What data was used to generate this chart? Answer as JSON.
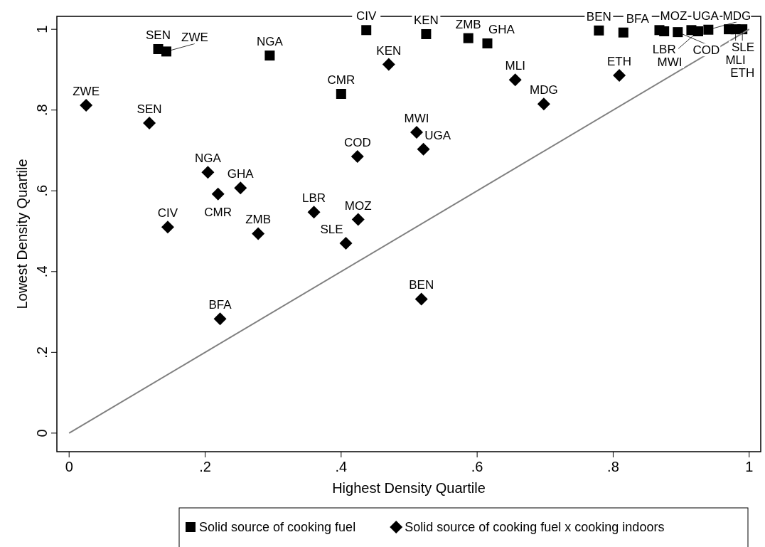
{
  "chart_data": {
    "type": "scatter",
    "xlabel": "Highest Density Quartile",
    "ylabel": "Lowest Density Quartile",
    "xlim": [
      -0.018,
      1.017
    ],
    "ylim": [
      -0.046,
      1.032
    ],
    "xticks": [
      0,
      {
        "value": 0.2,
        "label": ".2"
      },
      {
        "value": 0.4,
        "label": ".4"
      },
      {
        "value": 0.6,
        "label": ".6"
      },
      {
        "value": 0.8,
        "label": ".8"
      },
      1
    ],
    "yticks": [
      0,
      {
        "value": 0.2,
        "label": ".2"
      },
      {
        "value": 0.4,
        "label": ".4"
      },
      {
        "value": 0.6,
        "label": ".6"
      },
      {
        "value": 0.8,
        "label": ".8"
      },
      1
    ],
    "grid": false,
    "legend": "bottom",
    "series": [
      {
        "name": "Solid source of cooking fuel",
        "color": "#000000",
        "marker": "square",
        "x": [
          0.131,
          0.143,
          0.295,
          0.4,
          0.437,
          0.525,
          0.587,
          0.615,
          0.779,
          0.815,
          0.868,
          0.875,
          0.895,
          0.915,
          0.925,
          0.94,
          0.97,
          0.98,
          0.99
        ],
        "values": [
          0.951,
          0.945,
          0.935,
          0.84,
          0.998,
          0.988,
          0.978,
          0.965,
          0.997,
          0.992,
          0.998,
          0.995,
          0.993,
          0.998,
          0.995,
          0.999,
          1.0,
          1.0,
          1.0
        ]
      },
      {
        "name": "Solid source of cooking fuel x cooking indoors",
        "color": "#000000",
        "marker": "diamond",
        "x": [
          0.025,
          0.118,
          0.204,
          0.219,
          0.252,
          0.145,
          0.222,
          0.278,
          0.36,
          0.407,
          0.425,
          0.424,
          0.47,
          0.511,
          0.521,
          0.518,
          0.656,
          0.698,
          0.809
        ],
        "values": [
          0.812,
          0.768,
          0.646,
          0.592,
          0.607,
          0.51,
          0.283,
          0.494,
          0.547,
          0.47,
          0.529,
          0.685,
          0.913,
          0.745,
          0.703,
          0.332,
          0.875,
          0.815,
          0.886
        ]
      },
      {
        "type": "line",
        "color": "#808080",
        "marker": "none",
        "x": [
          0,
          1
        ],
        "values": [
          0,
          1
        ]
      }
    ],
    "annotations": [
      {
        "text": "SEN",
        "x": 0.131,
        "y": 0.951
      },
      {
        "text": "ZWE",
        "x": 0.143,
        "y": 0.945
      },
      {
        "text": "NGA",
        "x": 0.295,
        "y": 0.935
      },
      {
        "text": "CMR",
        "x": 0.4,
        "y": 0.84
      },
      {
        "text": "CIV",
        "x": 0.437,
        "y": 0.998
      },
      {
        "text": "KEN",
        "x": 0.525,
        "y": 0.988
      },
      {
        "text": "ZMB",
        "x": 0.587,
        "y": 0.978
      },
      {
        "text": "GHA",
        "x": 0.615,
        "y": 0.965
      },
      {
        "text": "BEN",
        "x": 0.779,
        "y": 0.997
      },
      {
        "text": "BFA",
        "x": 0.815,
        "y": 0.992
      },
      {
        "text": "MOZ",
        "x": 0.868,
        "y": 0.998
      },
      {
        "text": "LBR",
        "x": 0.875,
        "y": 0.995
      },
      {
        "text": "COD",
        "x": 0.895,
        "y": 0.993
      },
      {
        "text": "UGA",
        "x": 0.915,
        "y": 0.998
      },
      {
        "text": "MWI",
        "x": 0.925,
        "y": 0.995
      },
      {
        "text": "MDG",
        "x": 0.94,
        "y": 0.999
      },
      {
        "text": "SLE",
        "x": 0.97,
        "y": 1.0
      },
      {
        "text": "MLI",
        "x": 0.98,
        "y": 1.0
      },
      {
        "text": "ETH",
        "x": 0.99,
        "y": 1.0
      },
      {
        "text": "ZWE",
        "x": 0.025,
        "y": 0.812
      },
      {
        "text": "SEN",
        "x": 0.118,
        "y": 0.768
      },
      {
        "text": "NGA",
        "x": 0.204,
        "y": 0.646
      },
      {
        "text": "CMR",
        "x": 0.219,
        "y": 0.592
      },
      {
        "text": "GHA",
        "x": 0.252,
        "y": 0.607
      },
      {
        "text": "CIV",
        "x": 0.145,
        "y": 0.51
      },
      {
        "text": "BFA",
        "x": 0.222,
        "y": 0.283
      },
      {
        "text": "ZMB",
        "x": 0.278,
        "y": 0.494
      },
      {
        "text": "LBR",
        "x": 0.36,
        "y": 0.547
      },
      {
        "text": "SLE",
        "x": 0.407,
        "y": 0.47
      },
      {
        "text": "MOZ",
        "x": 0.425,
        "y": 0.529
      },
      {
        "text": "COD",
        "x": 0.424,
        "y": 0.685
      },
      {
        "text": "KEN",
        "x": 0.47,
        "y": 0.913
      },
      {
        "text": "MWI",
        "x": 0.511,
        "y": 0.745
      },
      {
        "text": "UGA",
        "x": 0.521,
        "y": 0.703
      },
      {
        "text": "BEN",
        "x": 0.518,
        "y": 0.332
      },
      {
        "text": "MLI",
        "x": 0.656,
        "y": 0.875
      },
      {
        "text": "MDG",
        "x": 0.698,
        "y": 0.815
      },
      {
        "text": "ETH",
        "x": 0.809,
        "y": 0.886
      }
    ]
  }
}
